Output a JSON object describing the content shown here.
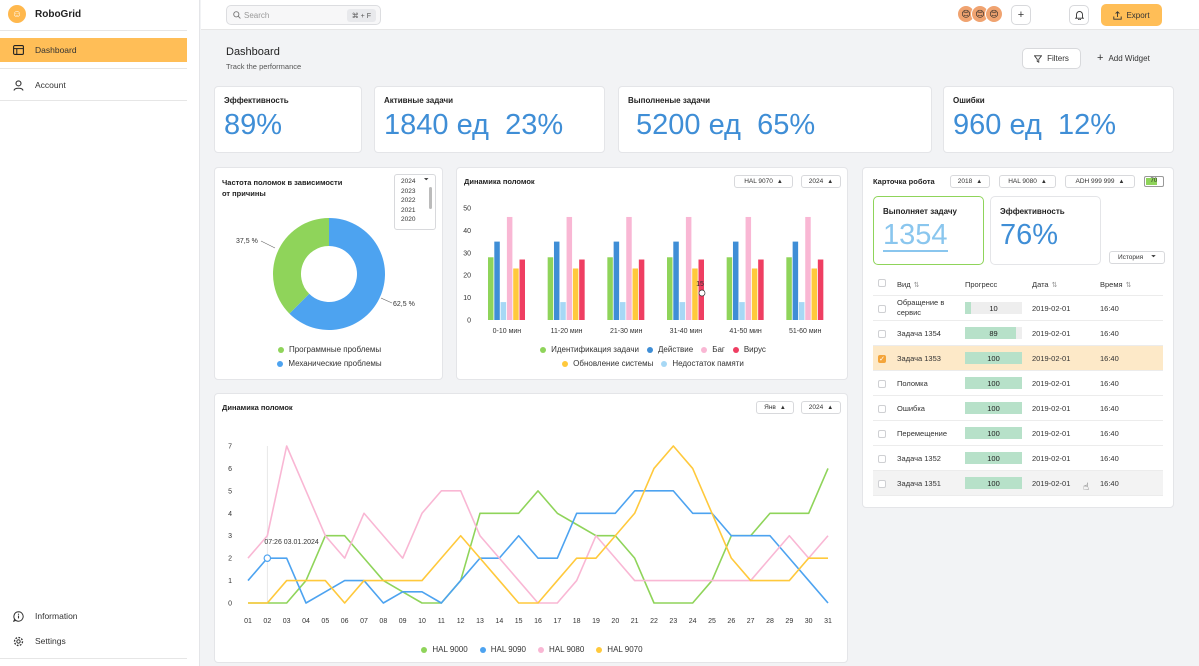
{
  "app": {
    "name": "RoboGrid",
    "logo_icon": "☺"
  },
  "sidebar": {
    "items": [
      {
        "label": "Dashboard",
        "icon": "table-icon",
        "active": true
      },
      {
        "label": "Account",
        "icon": "user-icon",
        "active": false
      }
    ],
    "bottom_items": [
      {
        "label": "Information",
        "icon": "info-icon"
      },
      {
        "label": "Settings",
        "icon": "gear-icon"
      }
    ]
  },
  "topbar": {
    "search_placeholder": "Search",
    "search_shortcut": "⌘ + F",
    "export_label": "Export"
  },
  "page": {
    "title": "Dashboard",
    "subtitle": "Track the performance",
    "filters_label": "Filters",
    "add_widget_label": "Add Widget"
  },
  "kpis": [
    {
      "label": "Эффективность",
      "value": "89%"
    },
    {
      "label": "Активные задачи",
      "value": "1840 ед  23%"
    },
    {
      "label": "Выполненые задачи",
      "value": "5200 ед  65%"
    },
    {
      "label": "Ошибки",
      "value": "960 ед  12%"
    }
  ],
  "donut": {
    "title_line1": "Частота поломок в зависимости",
    "title_line2": "от причины",
    "year_selected": "2024",
    "year_options": [
      "2023",
      "2022",
      "2021",
      "2020"
    ],
    "colors": {
      "software": "#8fd45a",
      "mechanical": "#4da3f0"
    }
  },
  "bars": {
    "title": "Динамика поломок",
    "filter_robot": "HAL 9070",
    "filter_year": "2024",
    "tooltip_value": "15"
  },
  "lines": {
    "title": "Динамика поломок",
    "filter_month": "Янв",
    "filter_year": "2024",
    "tooltip": "07:26  03.01.2024"
  },
  "robot": {
    "title": "Карточка робота",
    "filter_year": "2018",
    "filter_robot": "HAL 9080",
    "filter_adh": "ADH 999 999",
    "battery": "70",
    "task_label": "Выполняет задачу",
    "task_value": "1354",
    "eff_label": "Эффективность",
    "eff_value": "76%",
    "history_label": "История",
    "columns": {
      "type": "Вид",
      "progress": "Прогресс",
      "date": "Дата",
      "time": "Время"
    },
    "rows": [
      {
        "type": "Обращение в сервис",
        "progress": 10,
        "date": "2019-02-01",
        "time": "16:40",
        "checked": false
      },
      {
        "type": "Задача 1354",
        "progress": 89,
        "date": "2019-02-01",
        "time": "16:40",
        "checked": false
      },
      {
        "type": "Задача 1353",
        "progress": 100,
        "date": "2019-02-01",
        "time": "16:40",
        "checked": true
      },
      {
        "type": "Поломка",
        "progress": 100,
        "date": "2019-02-01",
        "time": "16:40",
        "checked": false
      },
      {
        "type": "Ошибка",
        "progress": 100,
        "date": "2019-02-01",
        "time": "16:40",
        "checked": false
      },
      {
        "type": "Перемещение",
        "progress": 100,
        "date": "2019-02-01",
        "time": "16:40",
        "checked": false
      },
      {
        "type": "Задача 1352",
        "progress": 100,
        "date": "2019-02-01",
        "time": "16:40",
        "checked": false
      },
      {
        "type": "Задача 1351",
        "progress": 100,
        "date": "2019-02-01",
        "time": "16:40",
        "checked": false
      }
    ]
  },
  "chart_data": [
    {
      "type": "pie",
      "title": "Частота поломок в зависимости от причины",
      "slices": [
        {
          "name": "Программные проблемы",
          "value": 37.5,
          "label": "37,5 %",
          "color": "#8fd45a"
        },
        {
          "name": "Механические проблемы",
          "value": 62.5,
          "label": "62,5 %",
          "color": "#4da3f0"
        }
      ],
      "legend": "bottom"
    },
    {
      "type": "bar",
      "title": "Динамика поломок",
      "categories": [
        "0-10 мин",
        "11-20 мин",
        "21-30 мин",
        "31-40 мин",
        "41-50 мин",
        "51-60 мин"
      ],
      "ylim": [
        0,
        50
      ],
      "yticks": [
        0,
        10,
        20,
        30,
        40,
        50
      ],
      "series": [
        {
          "name": "Идентификация задачи",
          "color": "#8fd45a",
          "values": [
            28,
            28,
            28,
            28,
            28,
            28
          ]
        },
        {
          "name": "Действие",
          "color": "#3f8ed6",
          "values": [
            35,
            35,
            35,
            35,
            35,
            35
          ]
        },
        {
          "name": "Недостаток памяти",
          "color": "#a7d8f5",
          "values": [
            8,
            8,
            8,
            8,
            8,
            8
          ]
        },
        {
          "name": "Баг",
          "color": "#f9b7d4",
          "values": [
            46,
            46,
            46,
            46,
            46,
            46
          ]
        },
        {
          "name": "Обновление системы",
          "color": "#ffc93c",
          "values": [
            23,
            23,
            23,
            23,
            23,
            23
          ]
        },
        {
          "name": "Вирус",
          "color": "#ef3e62",
          "values": [
            27,
            27,
            27,
            27,
            27,
            27
          ]
        }
      ],
      "legend_rows": [
        [
          "Идентификация задачи",
          "Действие",
          "Баг",
          "Вирус"
        ],
        [
          "Обновление системы",
          "Недостаток памяти"
        ]
      ],
      "legend": "bottom"
    },
    {
      "type": "line",
      "title": "Динамика поломок",
      "x": [
        "01",
        "02",
        "03",
        "04",
        "05",
        "06",
        "07",
        "08",
        "09",
        "10",
        "11",
        "12",
        "13",
        "14",
        "15",
        "16",
        "17",
        "18",
        "19",
        "20",
        "21",
        "22",
        "23",
        "24",
        "25",
        "26",
        "27",
        "28",
        "29",
        "30",
        "31"
      ],
      "ylim": [
        0,
        7
      ],
      "yticks": [
        0,
        1,
        2,
        3,
        4,
        5,
        6,
        7
      ],
      "series": [
        {
          "name": "HAL 9000",
          "color": "#8fd45a",
          "values": [
            0,
            0,
            0,
            1,
            3,
            3,
            2,
            1,
            0.5,
            0,
            0,
            1,
            4,
            4,
            4,
            5,
            4,
            3.5,
            3,
            3,
            2,
            0,
            0,
            0,
            1,
            3,
            3,
            4,
            4,
            4,
            6
          ]
        },
        {
          "name": "HAL 9090",
          "color": "#4da3f0",
          "values": [
            1,
            2,
            2,
            0,
            0.5,
            1,
            1,
            0,
            0.5,
            0.5,
            0,
            1,
            2,
            2,
            3,
            2,
            2,
            4,
            4,
            4,
            5,
            5,
            5,
            4,
            4,
            3,
            3,
            3,
            2,
            1,
            0
          ]
        },
        {
          "name": "HAL 9080",
          "color": "#f9b7d4",
          "values": [
            2,
            3,
            7,
            5,
            3,
            2,
            4,
            3,
            2,
            4,
            5,
            5,
            3,
            2,
            1,
            0,
            0,
            1,
            3,
            2,
            1,
            1,
            1,
            1,
            1,
            1,
            1,
            2,
            3,
            2,
            3
          ]
        },
        {
          "name": "HAL 9070",
          "color": "#ffc93c",
          "values": [
            0,
            0,
            1,
            1,
            1,
            0,
            1,
            1,
            1,
            1,
            2,
            3,
            2,
            1,
            0,
            0,
            1,
            2,
            2,
            3,
            4,
            6,
            7,
            6,
            4,
            2,
            1,
            1,
            1,
            2,
            2
          ]
        }
      ],
      "legend": "bottom"
    }
  ]
}
